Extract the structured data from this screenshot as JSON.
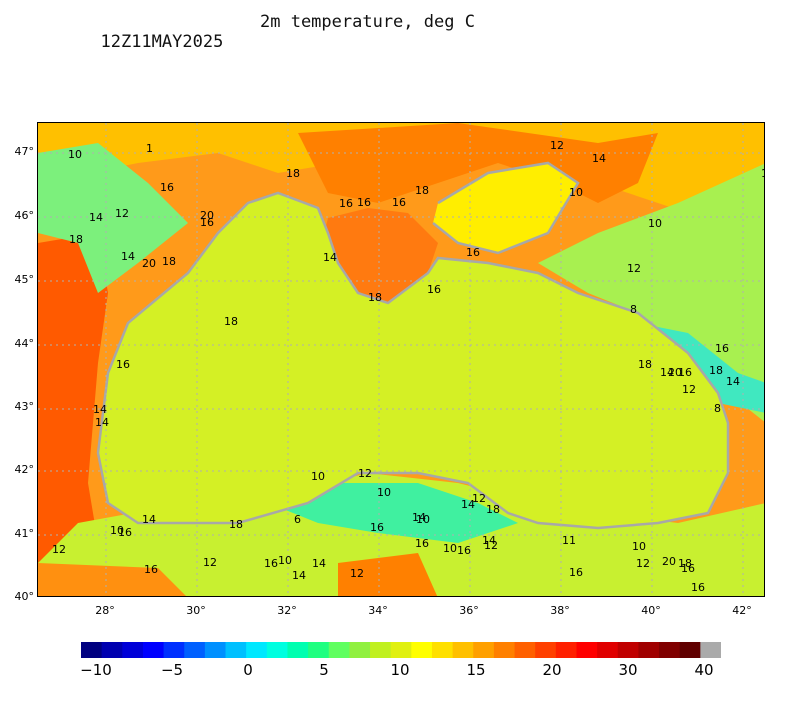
{
  "header": {
    "timestamp": "12Z11MAY2025",
    "title": "2m temperature, deg C"
  },
  "map": {
    "lat_ticks": [
      "47°",
      "46°",
      "45°",
      "44°",
      "43°",
      "42°",
      "41°",
      "40°"
    ],
    "lon_ticks": [
      "28°",
      "30°",
      "32°",
      "34°",
      "36°",
      "38°",
      "40°",
      "42°"
    ],
    "contour_labels": [
      "10",
      "16",
      "14",
      "12",
      "18",
      "14",
      "20",
      "18",
      "20",
      "16",
      "18",
      "16",
      "14",
      "14",
      "18",
      "16",
      "16",
      "16",
      "18",
      "16",
      "14",
      "18",
      "16",
      "12",
      "14",
      "10",
      "10",
      "12",
      "8",
      "16",
      "18",
      "14",
      "20",
      "16",
      "18",
      "14",
      "12",
      "8",
      "10",
      "12",
      "10",
      "14",
      "12",
      "18",
      "6",
      "16",
      "14",
      "10",
      "11",
      "10",
      "16",
      "16",
      "14",
      "12",
      "10",
      "12",
      "20",
      "18",
      "16",
      "12",
      "10",
      "16",
      "14",
      "18",
      "16",
      "12",
      "16",
      "10",
      "14",
      "14",
      "12",
      "16",
      "16",
      "12",
      "1"
    ],
    "colors": {
      "sea": "#d4f025",
      "land_warm": "#ff8c1a",
      "land_hot": "#ff5a00",
      "land_mild": "#fff200",
      "land_cool": "#7cf07c",
      "coast": "#a8a8a8",
      "grid": "#b0b0b0"
    }
  },
  "colorbar": {
    "tick_labels": [
      "−10",
      "−5",
      "0",
      "5",
      "10",
      "15",
      "20",
      "30",
      "40"
    ],
    "colors": [
      "#000080",
      "#0000b0",
      "#0000d8",
      "#0000ff",
      "#0030ff",
      "#0060ff",
      "#0090ff",
      "#00c0ff",
      "#00e8ff",
      "#00ffe0",
      "#00ffb0",
      "#20ff80",
      "#60ff60",
      "#90f040",
      "#c0f020",
      "#e0f010",
      "#ffff00",
      "#ffe000",
      "#ffc000",
      "#ffa000",
      "#ff8000",
      "#ff6000",
      "#ff4000",
      "#ff2000",
      "#ff0000",
      "#e00000",
      "#c00000",
      "#a00000",
      "#800000",
      "#600000",
      "#aaaaaa"
    ]
  }
}
